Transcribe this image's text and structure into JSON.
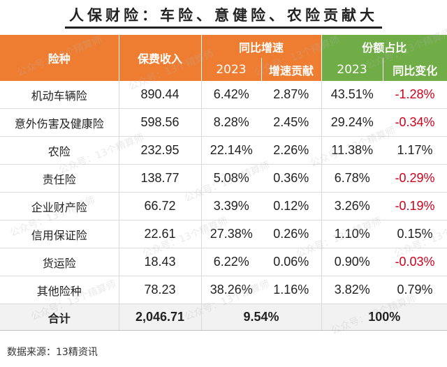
{
  "title": "人保财险：车险、意健险、农险贡献大",
  "header": {
    "col_type": "险种",
    "col_premium": "保费收入",
    "group_growth": "同比增速",
    "group_share": "份额占比",
    "growth_year": "2023",
    "growth_contrib": "增速贡献",
    "share_year": "2023",
    "share_change": "同比变化"
  },
  "rows": [
    {
      "name": "机动车辆险",
      "premium": "890.44",
      "growth": "6.42%",
      "contrib": "2.87%",
      "share": "43.51%",
      "change": "-1.28%",
      "negative": true
    },
    {
      "name": "意外伤害及健康险",
      "premium": "598.56",
      "growth": "8.28%",
      "contrib": "2.45%",
      "share": "29.24%",
      "change": "-0.34%",
      "negative": true
    },
    {
      "name": "农险",
      "premium": "232.95",
      "growth": "22.14%",
      "contrib": "2.26%",
      "share": "11.38%",
      "change": "1.17%",
      "negative": false
    },
    {
      "name": "责任险",
      "premium": "138.77",
      "growth": "5.08%",
      "contrib": "0.36%",
      "share": "6.78%",
      "change": "-0.29%",
      "negative": true
    },
    {
      "name": "企业财产险",
      "premium": "66.72",
      "growth": "3.39%",
      "contrib": "0.12%",
      "share": "3.26%",
      "change": "-0.19%",
      "negative": true
    },
    {
      "name": "信用保证险",
      "premium": "22.61",
      "growth": "27.38%",
      "contrib": "0.26%",
      "share": "1.10%",
      "change": "0.15%",
      "negative": false
    },
    {
      "name": "货运险",
      "premium": "18.43",
      "growth": "6.22%",
      "contrib": "0.06%",
      "share": "0.90%",
      "change": "-0.03%",
      "negative": true
    },
    {
      "name": "其他险种",
      "premium": "78.23",
      "growth": "38.26%",
      "contrib": "1.16%",
      "share": "3.82%",
      "change": "0.79%",
      "negative": false
    }
  ],
  "total": {
    "name": "合计",
    "premium": "2,046.71",
    "growth": "9.54%",
    "share": "100%"
  },
  "source": "数据来源：13精资讯",
  "watermark": "公众号：13个精算师",
  "colors": {
    "orange": "#ef7d31",
    "green": "#70ad47",
    "negative": "#d0021b"
  }
}
